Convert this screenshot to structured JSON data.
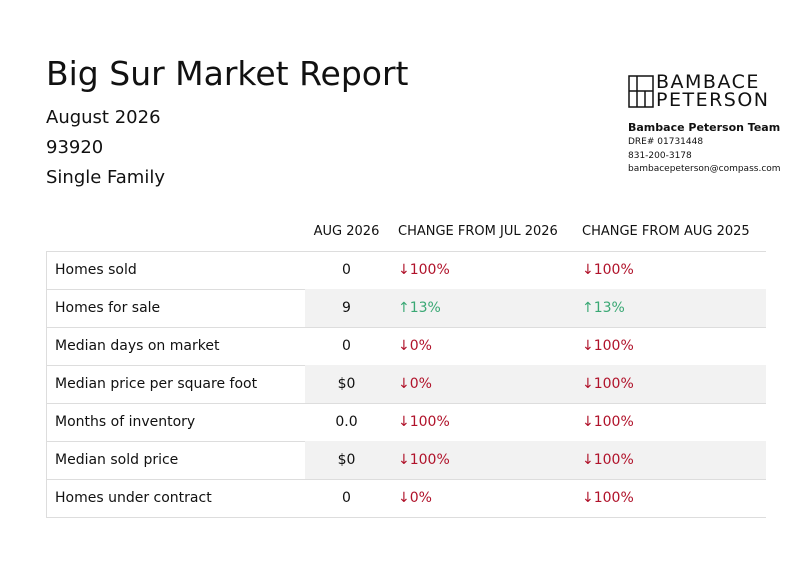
{
  "header": {
    "title": "Big Sur Market Report",
    "lines": [
      "August 2026",
      "93920",
      "Single Family"
    ]
  },
  "brand": {
    "logo": [
      "BAMBACE",
      "PETERSON"
    ],
    "team": "Bambace Peterson Team",
    "dre": "DRE# 01731448",
    "phone": "831-200-3178",
    "email": "bambacepeterson@compass.com"
  },
  "table": {
    "columns": [
      "AUG 2026",
      "CHANGE FROM JUL 2026",
      "CHANGE FROM AUG 2025"
    ],
    "rows": [
      [
        "Homes sold",
        "0",
        "↓100%",
        "↓100%"
      ],
      [
        "Homes for sale",
        "9",
        "↑13%",
        "↑13%"
      ],
      [
        "Median days on market",
        "0",
        "↓0%",
        "↓100%"
      ],
      [
        "Median price per square foot",
        "$0",
        "↓0%",
        "↓100%"
      ],
      [
        "Months of inventory",
        "0.0",
        "↓100%",
        "↓100%"
      ],
      [
        "Median sold price",
        "$0",
        "↓100%",
        "↓100%"
      ],
      [
        "Homes under contract",
        "0",
        "↓0%",
        "↓100%"
      ]
    ]
  }
}
